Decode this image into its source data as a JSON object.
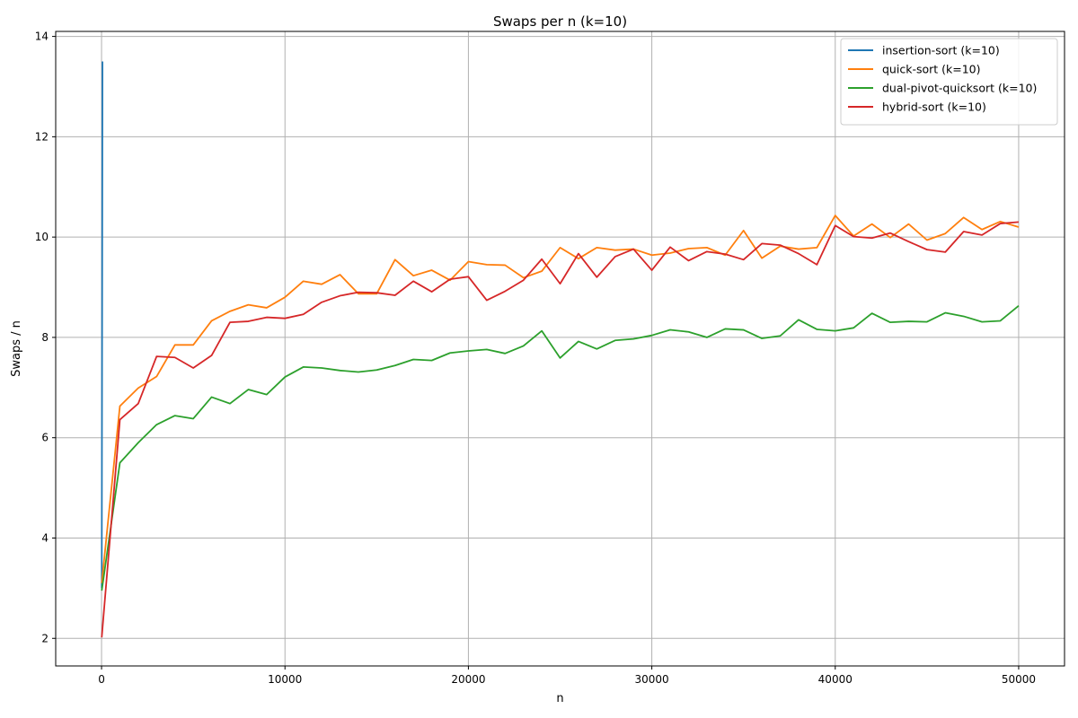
{
  "chart_data": {
    "type": "line",
    "title": "Swaps per n (k=10)",
    "xlabel": "n",
    "ylabel": "Swaps / n",
    "xlim": [
      -2500,
      52500
    ],
    "ylim": [
      1.45,
      14.1
    ],
    "xticks": [
      0,
      10000,
      20000,
      30000,
      40000,
      50000
    ],
    "yticks": [
      2,
      4,
      6,
      8,
      10,
      12,
      14
    ],
    "grid": true,
    "legend_position": "top-right",
    "series": [
      {
        "name": "insertion-sort (k=10)",
        "color": "#1f77b4",
        "x": [
          10,
          20,
          30,
          40,
          50
        ],
        "y": [
          3.0,
          5.6,
          8.2,
          10.9,
          13.5
        ]
      },
      {
        "name": "quick-sort (k=10)",
        "color": "#ff7f0e",
        "x": [
          10,
          1000,
          2000,
          3000,
          4000,
          5000,
          6000,
          7000,
          8000,
          9000,
          10000,
          11000,
          12000,
          13000,
          14000,
          15000,
          16000,
          17000,
          18000,
          19000,
          20000,
          21000,
          22000,
          23000,
          24000,
          25000,
          26000,
          27000,
          28000,
          29000,
          30000,
          31000,
          32000,
          33000,
          34000,
          35000,
          36000,
          37000,
          38000,
          39000,
          40000,
          41000,
          42000,
          43000,
          44000,
          45000,
          46000,
          47000,
          48000,
          49000,
          50000
        ],
        "y": [
          3.1,
          6.63,
          6.99,
          7.22,
          7.85,
          7.85,
          8.33,
          8.52,
          8.65,
          8.59,
          8.8,
          9.12,
          9.06,
          9.25,
          8.87,
          8.87,
          9.55,
          9.23,
          9.34,
          9.14,
          9.51,
          9.45,
          9.44,
          9.19,
          9.32,
          9.79,
          9.57,
          9.79,
          9.74,
          9.76,
          9.64,
          9.68,
          9.77,
          9.79,
          9.64,
          10.13,
          9.58,
          9.82,
          9.76,
          9.79,
          10.43,
          10.02,
          10.26,
          9.99,
          10.26,
          9.94,
          10.07,
          10.39,
          10.15,
          10.31,
          10.2
        ]
      },
      {
        "name": "dual-pivot-quicksort (k=10)",
        "color": "#2ca02c",
        "x": [
          10,
          1000,
          2000,
          3000,
          4000,
          5000,
          6000,
          7000,
          8000,
          9000,
          10000,
          11000,
          12000,
          13000,
          14000,
          15000,
          16000,
          17000,
          18000,
          19000,
          20000,
          21000,
          22000,
          23000,
          24000,
          25000,
          26000,
          27000,
          28000,
          29000,
          30000,
          31000,
          32000,
          33000,
          34000,
          35000,
          36000,
          37000,
          38000,
          39000,
          40000,
          41000,
          42000,
          43000,
          44000,
          45000,
          46000,
          47000,
          48000,
          49000,
          50000
        ],
        "y": [
          2.95,
          5.5,
          5.9,
          6.26,
          6.44,
          6.38,
          6.81,
          6.68,
          6.96,
          6.86,
          7.21,
          7.41,
          7.39,
          7.34,
          7.31,
          7.35,
          7.44,
          7.56,
          7.54,
          7.69,
          7.73,
          7.76,
          7.68,
          7.83,
          8.13,
          7.59,
          7.92,
          7.77,
          7.94,
          7.97,
          8.04,
          8.15,
          8.11,
          8.0,
          8.17,
          8.15,
          7.98,
          8.03,
          8.35,
          8.16,
          8.13,
          8.19,
          8.48,
          8.3,
          8.32,
          8.31,
          8.49,
          8.42,
          8.31,
          8.33,
          8.63
        ]
      },
      {
        "name": "hybrid-sort (k=10)",
        "color": "#d62728",
        "x": [
          10,
          1000,
          2000,
          3000,
          4000,
          5000,
          6000,
          7000,
          8000,
          9000,
          10000,
          11000,
          12000,
          13000,
          14000,
          15000,
          16000,
          17000,
          18000,
          19000,
          20000,
          21000,
          22000,
          23000,
          24000,
          25000,
          26000,
          27000,
          28000,
          29000,
          30000,
          31000,
          32000,
          33000,
          34000,
          35000,
          36000,
          37000,
          38000,
          39000,
          40000,
          41000,
          42000,
          43000,
          44000,
          45000,
          46000,
          47000,
          48000,
          49000,
          50000
        ],
        "y": [
          2.02,
          6.36,
          6.68,
          7.62,
          7.6,
          7.39,
          7.64,
          8.3,
          8.32,
          8.4,
          8.38,
          8.46,
          8.7,
          8.83,
          8.9,
          8.89,
          8.84,
          9.12,
          8.91,
          9.16,
          9.21,
          8.74,
          8.92,
          9.14,
          9.56,
          9.07,
          9.67,
          9.2,
          9.61,
          9.76,
          9.34,
          9.8,
          9.53,
          9.71,
          9.66,
          9.55,
          9.87,
          9.84,
          9.67,
          9.45,
          10.23,
          10.01,
          9.98,
          10.08,
          9.91,
          9.75,
          9.7,
          10.11,
          10.04,
          10.27,
          10.3
        ]
      }
    ]
  }
}
